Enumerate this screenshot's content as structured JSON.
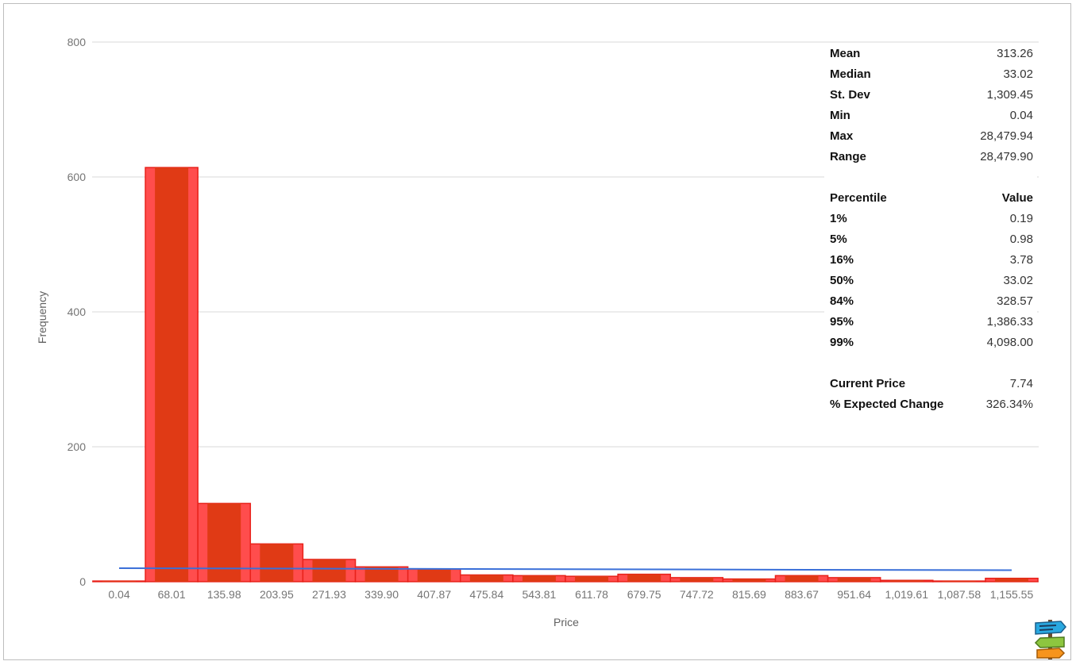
{
  "chart_data": {
    "type": "bar",
    "title": "",
    "xlabel": "Price",
    "ylabel": "Frequency",
    "ylim": [
      0,
      800
    ],
    "y_ticks": [
      "0",
      "200",
      "400",
      "600",
      "800"
    ],
    "x_tick_labels": [
      "0.04",
      "68.01",
      "135.98",
      "203.95",
      "271.93",
      "339.90",
      "407.87",
      "475.84",
      "543.81",
      "611.78",
      "679.75",
      "747.72",
      "815.69",
      "883.67",
      "951.64",
      "1,019.61",
      "1,087.58",
      "1,155.55"
    ],
    "bins": [
      0.04,
      68.01,
      135.98,
      203.95,
      271.93,
      339.9,
      407.87,
      475.84,
      543.81,
      611.78,
      679.75,
      747.72,
      815.69,
      883.67,
      951.64,
      1019.61,
      1087.58,
      1155.55
    ],
    "values": [
      1,
      614,
      116,
      56,
      33,
      22,
      19,
      10,
      9,
      8,
      11,
      6,
      4,
      9,
      6,
      2,
      1,
      5
    ],
    "overlay_line": {
      "x_start": 0.04,
      "x_end": 1155.55,
      "y_start": 20,
      "y_end": 17
    },
    "grid": true,
    "colors": {
      "bar_fill": "#ff4d4d",
      "bar_dark": "#e03a15",
      "bar_stroke": "#e8221b",
      "line": "#3a6fd8"
    }
  },
  "stats": {
    "rows": [
      {
        "label": "Mean",
        "value": "313.26"
      },
      {
        "label": "Median",
        "value": "33.02"
      },
      {
        "label": "St. Dev",
        "value": "1,309.45"
      },
      {
        "label": "Min",
        "value": "0.04"
      },
      {
        "label": "Max",
        "value": "28,479.94"
      },
      {
        "label": "Range",
        "value": "28,479.90"
      }
    ],
    "percentile_header": {
      "label": "Percentile",
      "value": "Value"
    },
    "percentiles": [
      {
        "label": "1%",
        "value": "0.19"
      },
      {
        "label": "5%",
        "value": "0.98"
      },
      {
        "label": "16%",
        "value": "3.78"
      },
      {
        "label": "50%",
        "value": "33.02"
      },
      {
        "label": "84%",
        "value": "328.57"
      },
      {
        "label": "95%",
        "value": "1,386.33"
      },
      {
        "label": "99%",
        "value": "4,098.00"
      }
    ],
    "current": [
      {
        "label": "Current Price",
        "value": "7.74"
      },
      {
        "label": "% Expected Change",
        "value": "326.34%"
      }
    ]
  },
  "logo": {
    "icon": "signpost-icon"
  }
}
